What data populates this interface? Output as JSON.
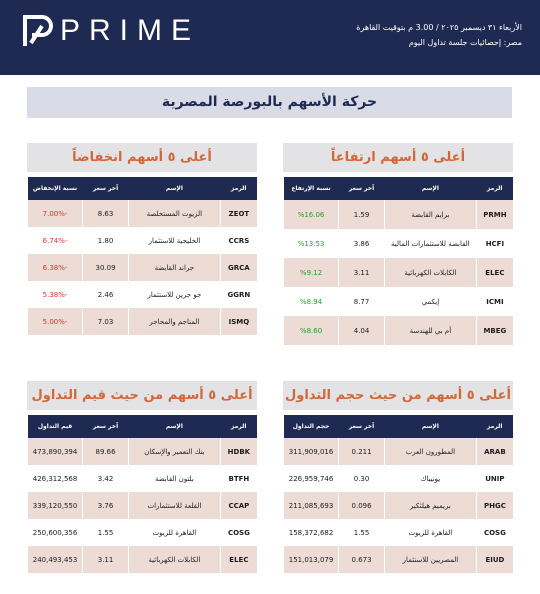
{
  "header": {
    "logo": "PRIME",
    "date": "الأربعاء ٣١ ديسمبر ٢٠٢٥ / 3.00 م بتوقيت القاهرة",
    "subtitle": "مصر: إحصائيات جلسة تداول اليوم"
  },
  "title": "حركة الأسهم بالبورصة المصرية",
  "sections": [
    {
      "title": "أعلى ٥ أسهم ارتفاعاً",
      "columns": [
        "الرمز",
        "الإسم",
        "آخر سعر",
        "نسبة الإرتفاع"
      ],
      "rows": [
        [
          "PRMH",
          "برايم القابضة",
          "1.59",
          "%16.06"
        ],
        [
          "HCFI",
          "القابضة للاستثمارات المالية",
          "3.86",
          "%13.53"
        ],
        [
          "ELEC",
          "الكابلات الكهربائية",
          "3.11",
          "%9.12"
        ],
        [
          "ICMI",
          "إيكمي",
          "8.77",
          "%8.94"
        ],
        [
          "MBEG",
          "أم بي للهندسة",
          "4.04",
          "%8.60"
        ]
      ]
    },
    {
      "title": "أعلى ٥ أسهم انخفاضاً",
      "columns": [
        "الرمز",
        "الإسم",
        "آخر سعر",
        "نسبة الإنخفاض"
      ],
      "rows": [
        [
          "ZEOT",
          "الزيوت المستخلصة",
          "8.63",
          "-7.00%"
        ],
        [
          "CCRS",
          "الخليجية للاستثمار",
          "1.80",
          "-6.74%"
        ],
        [
          "GRCA",
          "جراند القابضة",
          "30.09",
          "-6.38%"
        ],
        [
          "GGRN",
          "جو جرين للاستثمار",
          "2.46",
          "-5.38%"
        ],
        [
          "ISMQ",
          "المناجم والمحاجر",
          "7.03",
          "-5.00%"
        ]
      ]
    },
    {
      "title": "أعلى ٥ أسهم من حيث حجم التداول",
      "columns": [
        "الرمز",
        "الإسم",
        "آخر سعر",
        "حجم التداول"
      ],
      "rows": [
        [
          "ARAB",
          "المطورون العرب",
          "0.211",
          "311,909,016"
        ],
        [
          "UNIP",
          "يونيباك",
          "0.30",
          "226,959,746"
        ],
        [
          "PHGC",
          "بريميم هيلثكير",
          "0.096",
          "211,085,693"
        ],
        [
          "COSG",
          "القاهرة للزيوت",
          "1.55",
          "158,372,682"
        ],
        [
          "EIUD",
          "المصريين للاستثمار",
          "0.673",
          "151,013,079"
        ]
      ]
    },
    {
      "title": "أعلى ٥ أسهم من حيث قيم التداول",
      "columns": [
        "الرمز",
        "الإسم",
        "آخر سعر",
        "قيم التداول"
      ],
      "rows": [
        [
          "HDBK",
          "بنك التعمير والإسكان",
          "89.66",
          "473,890,394"
        ],
        [
          "BTFH",
          "بلتون القابضة",
          "3.42",
          "426,312,568"
        ],
        [
          "CCAP",
          "القلعة للاستثمارات",
          "3.76",
          "339,120,550"
        ],
        [
          "COSG",
          "القاهرة للزيوت",
          "1.55",
          "250,600,356"
        ],
        [
          "ELEC",
          "الكابلات الكهربائية",
          "3.11",
          "240,493,453"
        ]
      ]
    }
  ]
}
